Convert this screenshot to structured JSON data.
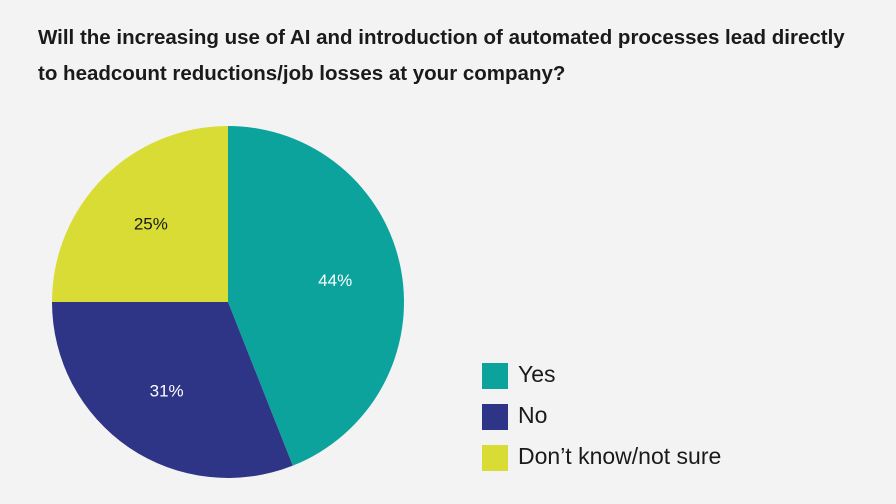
{
  "chart_data": {
    "type": "pie",
    "title": "Will the increasing use of AI and introduction of automated processes lead directly to headcount reductions/job losses at your company?",
    "categories": [
      "Yes",
      "No",
      "Don’t know/not sure"
    ],
    "values": [
      44,
      31,
      25
    ],
    "value_labels": [
      "44%",
      "31%",
      "25%"
    ],
    "colors": [
      "#0ba39c",
      "#2e3586",
      "#d8dc35"
    ],
    "legend": "right"
  }
}
